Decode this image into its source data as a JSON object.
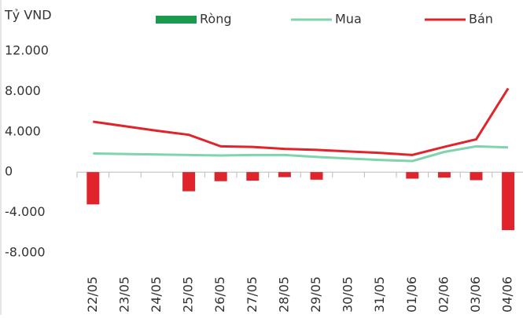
{
  "chart_data": {
    "type": "bar_line",
    "y_label": "Tỷ VND",
    "categories": [
      "22/05",
      "23/05",
      "24/05",
      "25/05",
      "26/05",
      "27/05",
      "28/05",
      "29/05",
      "30/05",
      "31/05",
      "01/06",
      "02/06",
      "03/06",
      "04/06"
    ],
    "series": [
      {
        "name": "Ròng",
        "type": "bar",
        "color": "#1b9a4e",
        "negative_color": "#e0242b",
        "values": [
          -3200,
          null,
          null,
          -1900,
          -900,
          -850,
          -500,
          -750,
          null,
          null,
          -650,
          -550,
          -800,
          -5750
        ]
      },
      {
        "name": "Mua",
        "type": "line",
        "color": "#7fd3ad",
        "values": [
          1850,
          1800,
          1750,
          1700,
          1650,
          1700,
          1700,
          1500,
          1350,
          1200,
          1100,
          2000,
          2550,
          2450
        ]
      },
      {
        "name": "Bán",
        "type": "line",
        "color": "#e0242b",
        "values": [
          5000,
          4550,
          4100,
          3700,
          2550,
          2500,
          2300,
          2200,
          2050,
          1900,
          1700,
          2500,
          3250,
          8300
        ]
      }
    ],
    "ylim": [
      -8000,
      12000
    ],
    "yticks": [
      {
        "value": 12000,
        "label": "12.000"
      },
      {
        "value": 8000,
        "label": "8.000"
      },
      {
        "value": 4000,
        "label": "4.000"
      },
      0,
      {
        "value": -4000,
        "label": "-4.000"
      },
      {
        "value": -8000,
        "label": "-8.000"
      }
    ],
    "legend": "top"
  }
}
